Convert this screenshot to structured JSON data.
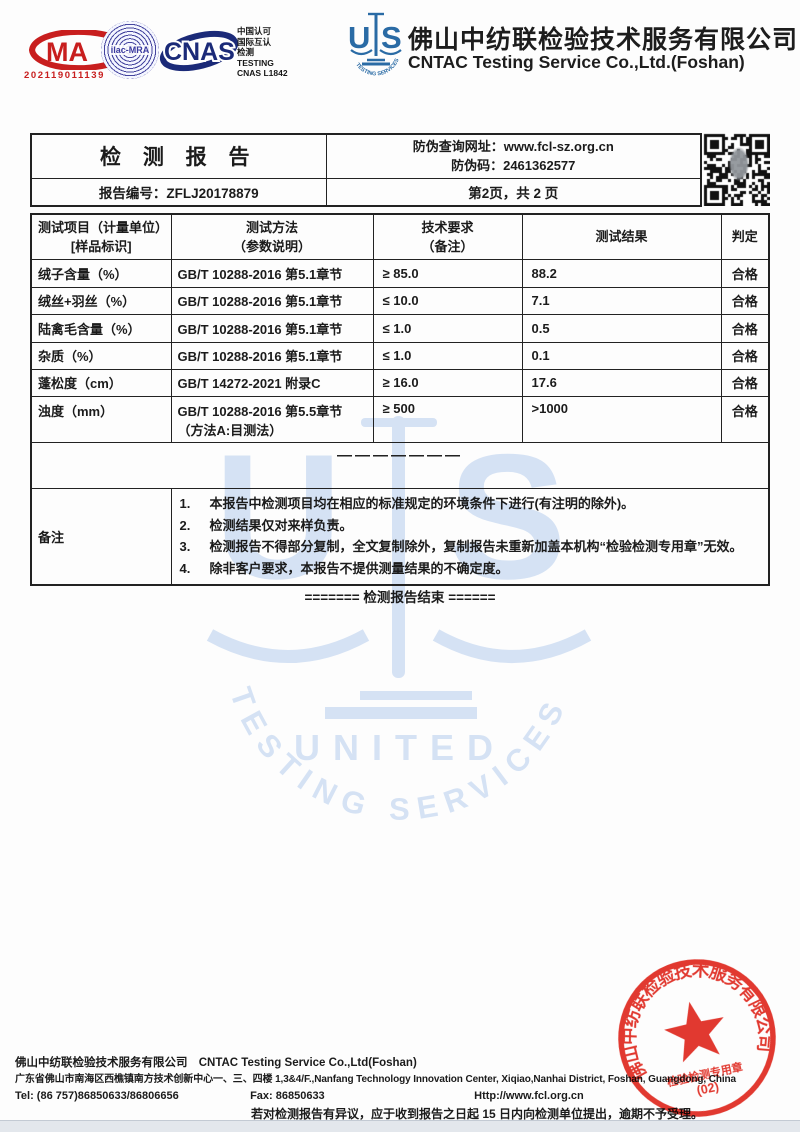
{
  "accreditation": {
    "cma_number": "202119011139",
    "ilac_label": "ilac-MRA",
    "cnas_label": "CNAS",
    "text_lines": [
      "中国认可",
      "国际互认",
      "检测",
      "TESTING",
      "CNAS L1842"
    ]
  },
  "company": {
    "logo_u": "U",
    "logo_s": "S",
    "name_cn": "佛山中纺联检验技术服务有限公司",
    "name_en": "CNTAC Testing Service Co.,Ltd.(Foshan)"
  },
  "report_header": {
    "title": "检 测 报 告",
    "antifake_url_line": "防伪查询网址：www.fcl-sz.org.cn",
    "antifake_code_line": "防伪码：2461362577",
    "report_no_line": "报告编号：ZFLJ20178879",
    "page_line": "第2页，共 2 页"
  },
  "table": {
    "headers": {
      "item1": "测试项目（计量单位）",
      "item2": "[样品标识]",
      "method1": "测试方法",
      "method2": "（参数说明）",
      "req1": "技术要求",
      "req2": "（备注）",
      "result": "测试结果",
      "judge": "判定"
    },
    "rows": [
      {
        "item": "绒子含量（%）",
        "method": "GB/T 10288-2016  第5.1章节",
        "req": "≥ 85.0",
        "result": "88.2",
        "judge": "合格"
      },
      {
        "item": "绒丝+羽丝（%）",
        "method": "GB/T 10288-2016  第5.1章节",
        "req": "≤ 10.0",
        "result": "7.1",
        "judge": "合格"
      },
      {
        "item": "陆禽毛含量（%）",
        "method": "GB/T 10288-2016  第5.1章节",
        "req": "≤ 1.0",
        "result": "0.5",
        "judge": "合格"
      },
      {
        "item": "杂质（%）",
        "method": "GB/T 10288-2016  第5.1章节",
        "req": "≤ 1.0",
        "result": "0.1",
        "judge": "合格"
      },
      {
        "item": "蓬松度（cm）",
        "method": "GB/T 14272-2021  附录C",
        "req": "≥ 16.0",
        "result": "17.6",
        "judge": "合格"
      },
      {
        "item": "浊度（mm）",
        "method": "GB/T 10288-2016  第5.5章节",
        "method_line2": "（方法A:目测法）",
        "req": "≥ 500",
        "result": ">1000",
        "judge": "合格"
      }
    ],
    "filler_dashes": "———————",
    "remarks_label": "备注",
    "remarks": [
      {
        "num": "1.",
        "text": "本报告中检测项目均在相应的标准规定的环境条件下进行(有注明的除外)。"
      },
      {
        "num": "2.",
        "text": "检测结果仅对来样负责。"
      },
      {
        "num": "3.",
        "text": "检测报告不得部分复制，全文复制除外，复制报告未重新加盖本机构“检验检测专用章”无效。"
      },
      {
        "num": "4.",
        "text": "除非客户要求，本报告不提供测量结果的不确定度。"
      }
    ]
  },
  "end_line": "======= 检测报告结束 ======",
  "watermark": {
    "logo_u": "U",
    "logo_s": "S",
    "united": "UNITED",
    "services": "TESTING SERVICES"
  },
  "stamp": {
    "ring_text": "佛山中纺联检验技术服务有限公司",
    "type_text": "检验检测专用章",
    "number": "(02)"
  },
  "footer": {
    "company_cn": "佛山中纺联检验技术服务有限公司",
    "company_en": "CNTAC Testing Service Co.,Ltd(Foshan)",
    "address": "广东省佛山市南海区西樵镇南方技术创新中心一、三、四楼 1,3&4/F.,Nanfang Technology Innovation Center, Xiqiao,Nanhai District, Foshan, Guangdong, China",
    "tel": "Tel: (86 757)86850633/86806656",
    "fax": "Fax: 86850633",
    "http": "Http://www.fcl.org.cn",
    "notice": "若对检测报告有异议，应于收到报告之日起 15 日内向检测单位提出，逾期不予受理。"
  },
  "colors": {
    "cma_red": "#c81e1e",
    "ilac_blue": "#3a3aa0",
    "cnas_navy": "#1b2a78",
    "uts_blue": "#2a6ba5",
    "watermark_blue": "#ccdcf2",
    "stamp_red": "#e12a20"
  }
}
